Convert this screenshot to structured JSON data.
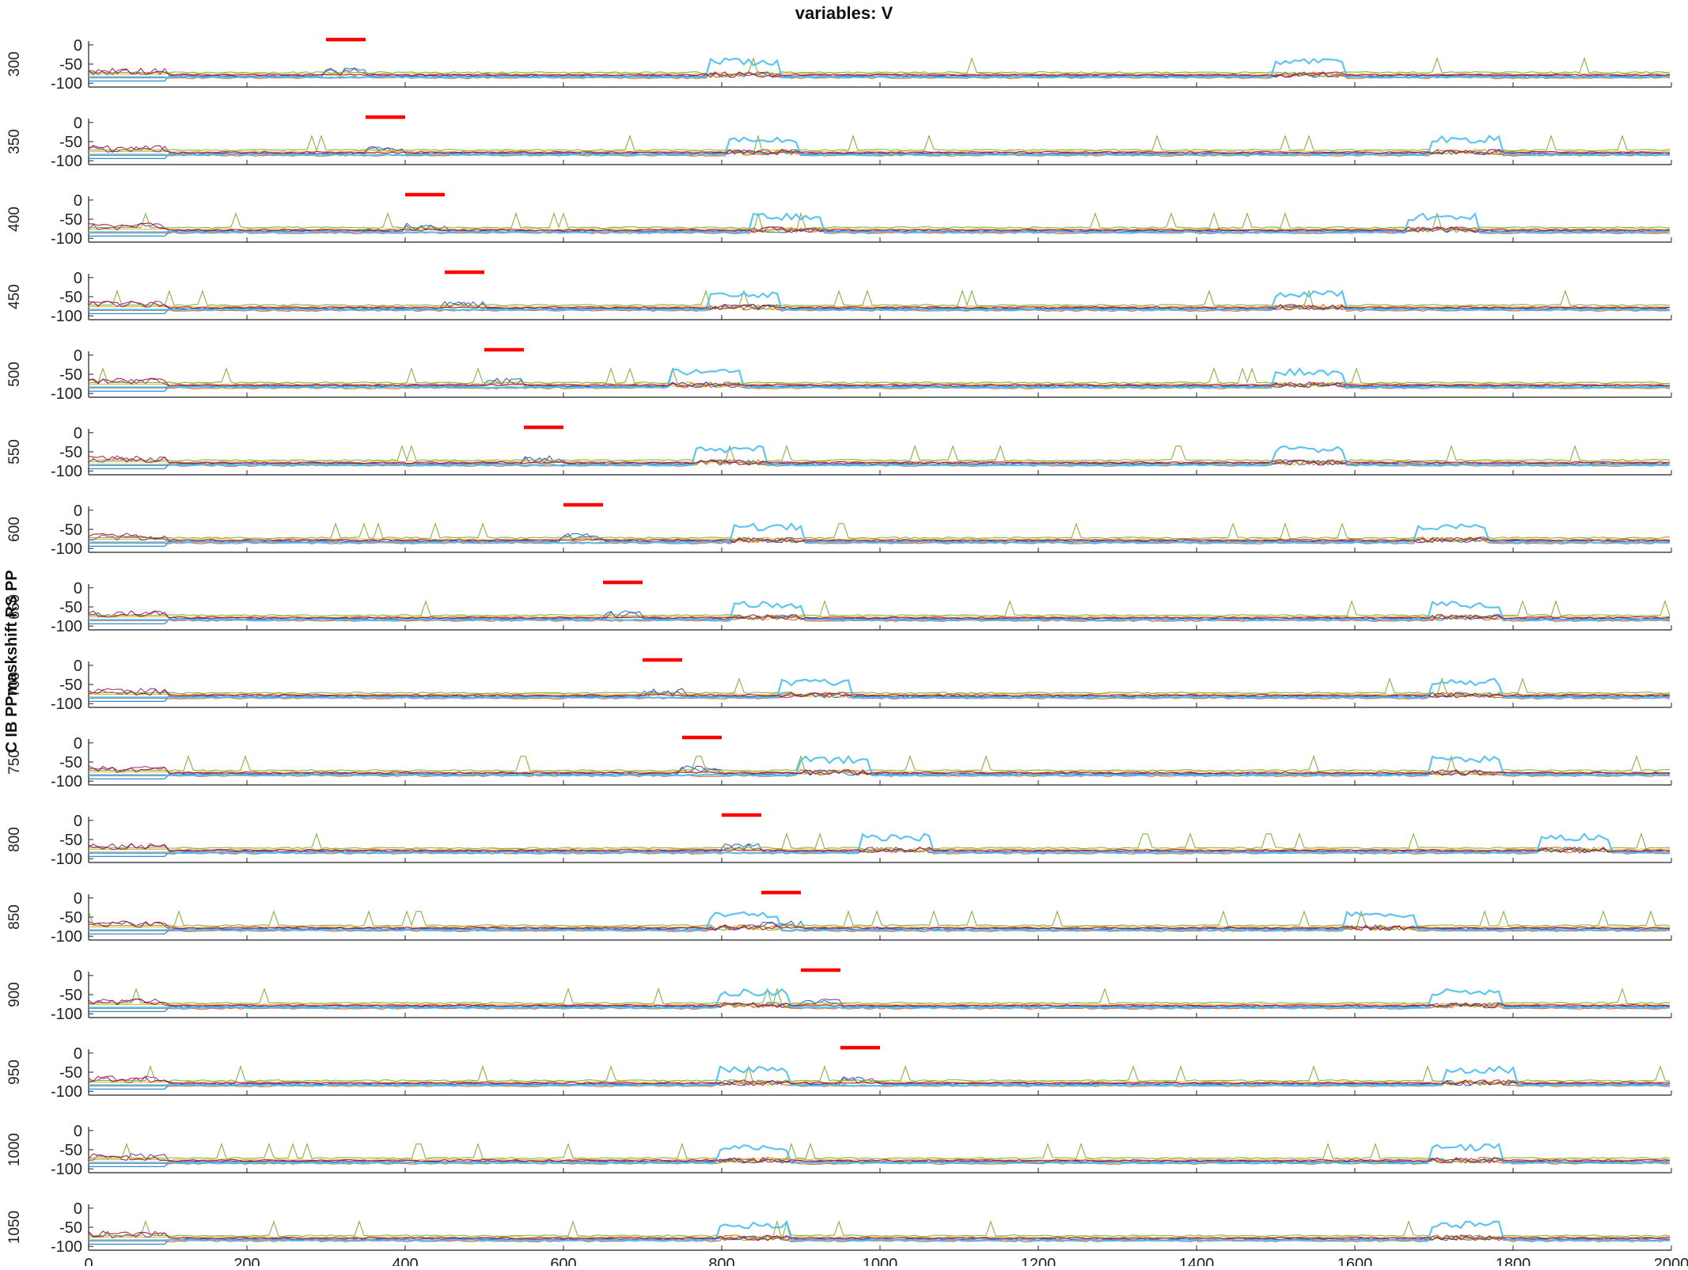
{
  "chart_data": {
    "type": "line",
    "title": "variables: V",
    "ylabel": "C IB PPmaskshift RS PP",
    "xlim": [
      0,
      2000
    ],
    "ylim": [
      -110,
      10
    ],
    "x_ticks": [
      0,
      200,
      400,
      600,
      800,
      1000,
      1200,
      1400,
      1600,
      1800,
      2000
    ],
    "y_ticks": [
      0,
      -50,
      -100
    ],
    "series_colors": [
      "#0072BD",
      "#D95319",
      "#EDB120",
      "#7E2F8E",
      "#77AC30",
      "#4DBEEE",
      "#A2142F"
    ],
    "stim_color": "#FF0000",
    "panel_row_labels": [
      "300",
      "350",
      "400",
      "450",
      "500",
      "550",
      "600",
      "650",
      "700",
      "750",
      "800",
      "850",
      "900",
      "950",
      "1000",
      "1050"
    ],
    "panels": [
      {
        "stim": [
          300,
          350
        ],
        "burst1": 830,
        "burst2": 1540
      },
      {
        "stim": [
          350,
          400
        ],
        "burst1": 850,
        "burst2": 1740
      },
      {
        "stim": [
          400,
          450
        ],
        "burst1": 880,
        "burst2": 1710
      },
      {
        "stim": [
          450,
          500
        ],
        "burst1": 830,
        "burst2": 1540
      },
      {
        "stim": [
          500,
          550
        ],
        "burst1": 780,
        "burst2": 1540
      },
      {
        "stim": [
          550,
          600
        ],
        "burst1": 810,
        "burst2": 1540
      },
      {
        "stim": [
          600,
          650
        ],
        "burst1": 860,
        "burst2": 1720
      },
      {
        "stim": [
          650,
          700
        ],
        "burst1": 860,
        "burst2": 1740
      },
      {
        "stim": [
          700,
          750
        ],
        "burst1": 920,
        "burst2": 1740
      },
      {
        "stim": [
          750,
          800
        ],
        "burst1": 940,
        "burst2": 1740
      },
      {
        "stim": [
          800,
          850
        ],
        "burst1": 1020,
        "burst2": 1880
      },
      {
        "stim": [
          850,
          900
        ],
        "burst1": 830,
        "burst2": 1630
      },
      {
        "stim": [
          900,
          950
        ],
        "burst1": 840,
        "burst2": 1740
      },
      {
        "stim": [
          950,
          1000
        ],
        "burst1": 840,
        "burst2": 1760
      },
      {
        "stim": null,
        "burst1": 840,
        "burst2": 1740
      },
      {
        "stim": null,
        "burst1": 840,
        "burst2": 1740
      }
    ]
  }
}
